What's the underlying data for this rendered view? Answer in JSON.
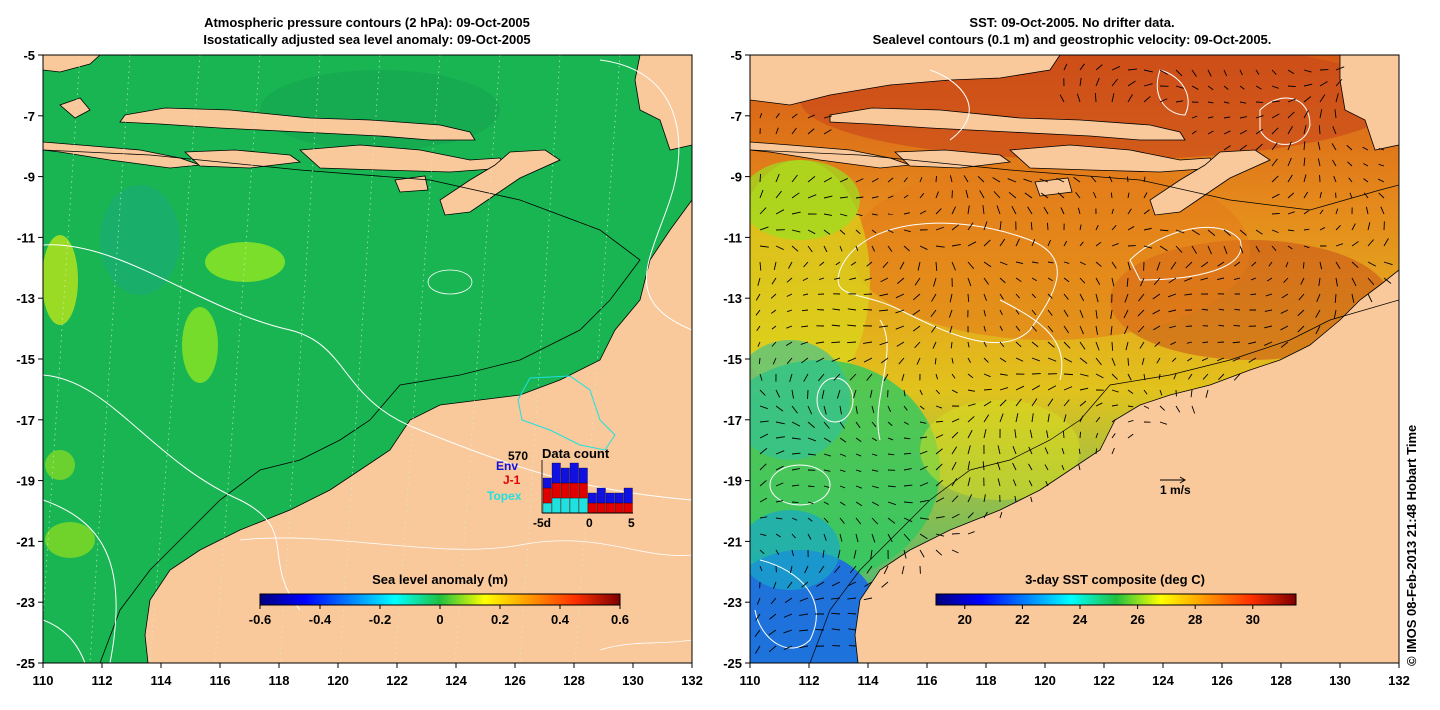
{
  "left_panel": {
    "title_line1": "Atmospheric pressure contours (2 hPa): 09-Oct-2005",
    "title_line2": "Isostatically adjusted sea level anomaly: 09-Oct-2005",
    "colorbar": {
      "label": "Sea level anomaly (m)",
      "range": [
        -0.6,
        0.6
      ],
      "ticks": [
        "-0.6",
        "-0.4",
        "-0.2",
        "0",
        "0.2",
        "0.4",
        "0.6"
      ],
      "colormap": "jet"
    },
    "x_ticks": [
      "110",
      "112",
      "114",
      "116",
      "118",
      "120",
      "122",
      "124",
      "126",
      "128",
      "130",
      "132"
    ],
    "y_ticks": [
      "-5",
      "-7",
      "-9",
      "-11",
      "-13",
      "-15",
      "-17",
      "-19",
      "-21",
      "-23",
      "-25"
    ],
    "data_count": {
      "total": "570",
      "title": "Data count",
      "legend": [
        {
          "label": "Env",
          "color": "#1010e0"
        },
        {
          "label": "J-1",
          "color": "#e00000"
        },
        {
          "label": "Topex",
          "color": "#20e0e0"
        }
      ],
      "axis_labels": [
        "-5d",
        "0",
        "5"
      ]
    }
  },
  "right_panel": {
    "title_line1": "SST: 09-Oct-2005. No drifter data.",
    "title_line2": "Sealevel contours (0.1 m) and geostrophic velocity: 09-Oct-2005.",
    "colorbar": {
      "label": "3-day SST composite (deg C)",
      "range": [
        19,
        31.5
      ],
      "ticks": [
        "20",
        "22",
        "24",
        "26",
        "28",
        "30"
      ],
      "colormap": "jet"
    },
    "x_ticks": [
      "110",
      "112",
      "114",
      "116",
      "118",
      "120",
      "122",
      "124",
      "126",
      "128",
      "130",
      "132"
    ],
    "y_ticks": [
      "-5",
      "-7",
      "-9",
      "-11",
      "-13",
      "-15",
      "-17",
      "-19",
      "-21",
      "-23",
      "-25"
    ],
    "velocity_scale_label": "1 m/s"
  },
  "credit": "© IMOS 08-Feb-2013 21:48 Hobart Time",
  "colors": {
    "land": "#f9c89b",
    "sla_ocean": "#19b552",
    "sla_high": "#7fe22a",
    "sst_warm": "#e37a1a",
    "sst_hot": "#c8461a",
    "sst_mid": "#e6d21e",
    "sst_cool": "#3ad25a",
    "sst_cold": "#1e6ee0"
  }
}
